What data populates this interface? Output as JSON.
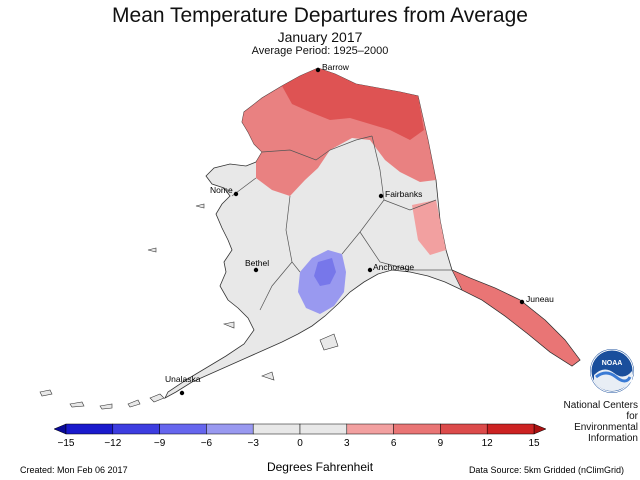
{
  "title": "Mean Temperature Departures from Average",
  "subtitle": "January 2017",
  "period": "Average Period: 1925–2000",
  "cities": [
    {
      "name": "Barrow"
    },
    {
      "name": "Nome"
    },
    {
      "name": "Fairbanks"
    },
    {
      "name": "Bethel"
    },
    {
      "name": "Anchorage"
    },
    {
      "name": "Juneau"
    },
    {
      "name": "Unalaska"
    }
  ],
  "legend": {
    "ticks": [
      "−15",
      "−12",
      "−9",
      "−6",
      "−3",
      "0",
      "3",
      "6",
      "9",
      "12",
      "15"
    ],
    "colors": [
      "#1a1acc",
      "#3d3de0",
      "#6666ee",
      "#9999f0",
      "#e8e8e8",
      "#e8e8e8",
      "#f2a0a0",
      "#e97575",
      "#dc4b4b",
      "#cc2222"
    ],
    "label": "Degrees Fahrenheit"
  },
  "footer": {
    "created": "Created: Mon Feb 06 2017",
    "source": "Data Source: 5km Gridded (nClimGrid)"
  },
  "org": {
    "logo_text": "NOAA",
    "line1": "National Centers for",
    "line2": "Environmental",
    "line3": "Information"
  }
}
